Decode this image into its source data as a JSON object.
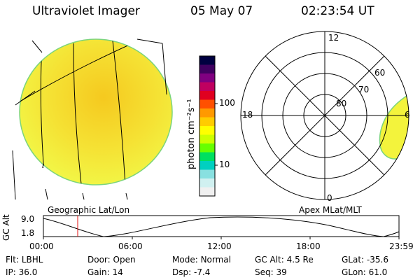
{
  "header": {
    "title": "Ultraviolet Imager",
    "date": "05 May 07",
    "time": "02:23:54 UT"
  },
  "colorbar": {
    "unit_label": "photon cm⁻²s⁻¹",
    "ticks": [
      "100",
      "10"
    ],
    "colors": [
      "#000040",
      "#400060",
      "#800080",
      "#c00060",
      "#e00020",
      "#ff5000",
      "#ff9900",
      "#ffcc00",
      "#ffff00",
      "#ccff00",
      "#66ff00",
      "#00e060",
      "#00d0c0",
      "#88e0e0",
      "#d0f0f0",
      "#f0f0f0"
    ]
  },
  "left_panel": {
    "label": "Geographic Lat/Lon",
    "fill_color": "#f3f33c",
    "center_color": "#f7d428"
  },
  "right_panel": {
    "label": "Apex MLat/MLT",
    "mlt_labels": {
      "top": "12",
      "left": "18",
      "right": "6",
      "bottom": "0"
    },
    "lat_labels": [
      "80",
      "70",
      "60"
    ]
  },
  "timeline": {
    "ylabel": "GC Alt",
    "y_ticks": [
      "9.0",
      "1.8"
    ],
    "x_ticks": [
      "00:00",
      "06:00",
      "12:00",
      "18:00",
      "23:59"
    ],
    "marker_time": "02:23:54"
  },
  "footer": {
    "row1": [
      {
        "label": "Flt:",
        "value": "LBHL"
      },
      {
        "label": "Door:",
        "value": "Open"
      },
      {
        "label": "Mode:",
        "value": "Normal"
      },
      {
        "label": "GC Alt:",
        "value": "4.5 Re"
      },
      {
        "label": "GLat:",
        "value": "-35.6"
      }
    ],
    "row2": [
      {
        "label": "IP:",
        "value": "36.0"
      },
      {
        "label": "Gain:",
        "value": "14"
      },
      {
        "label": "Dsp:",
        "value": "-7.4"
      },
      {
        "label": "Seq:",
        "value": "39"
      },
      {
        "label": "GLon:",
        "value": "61.0"
      }
    ]
  }
}
